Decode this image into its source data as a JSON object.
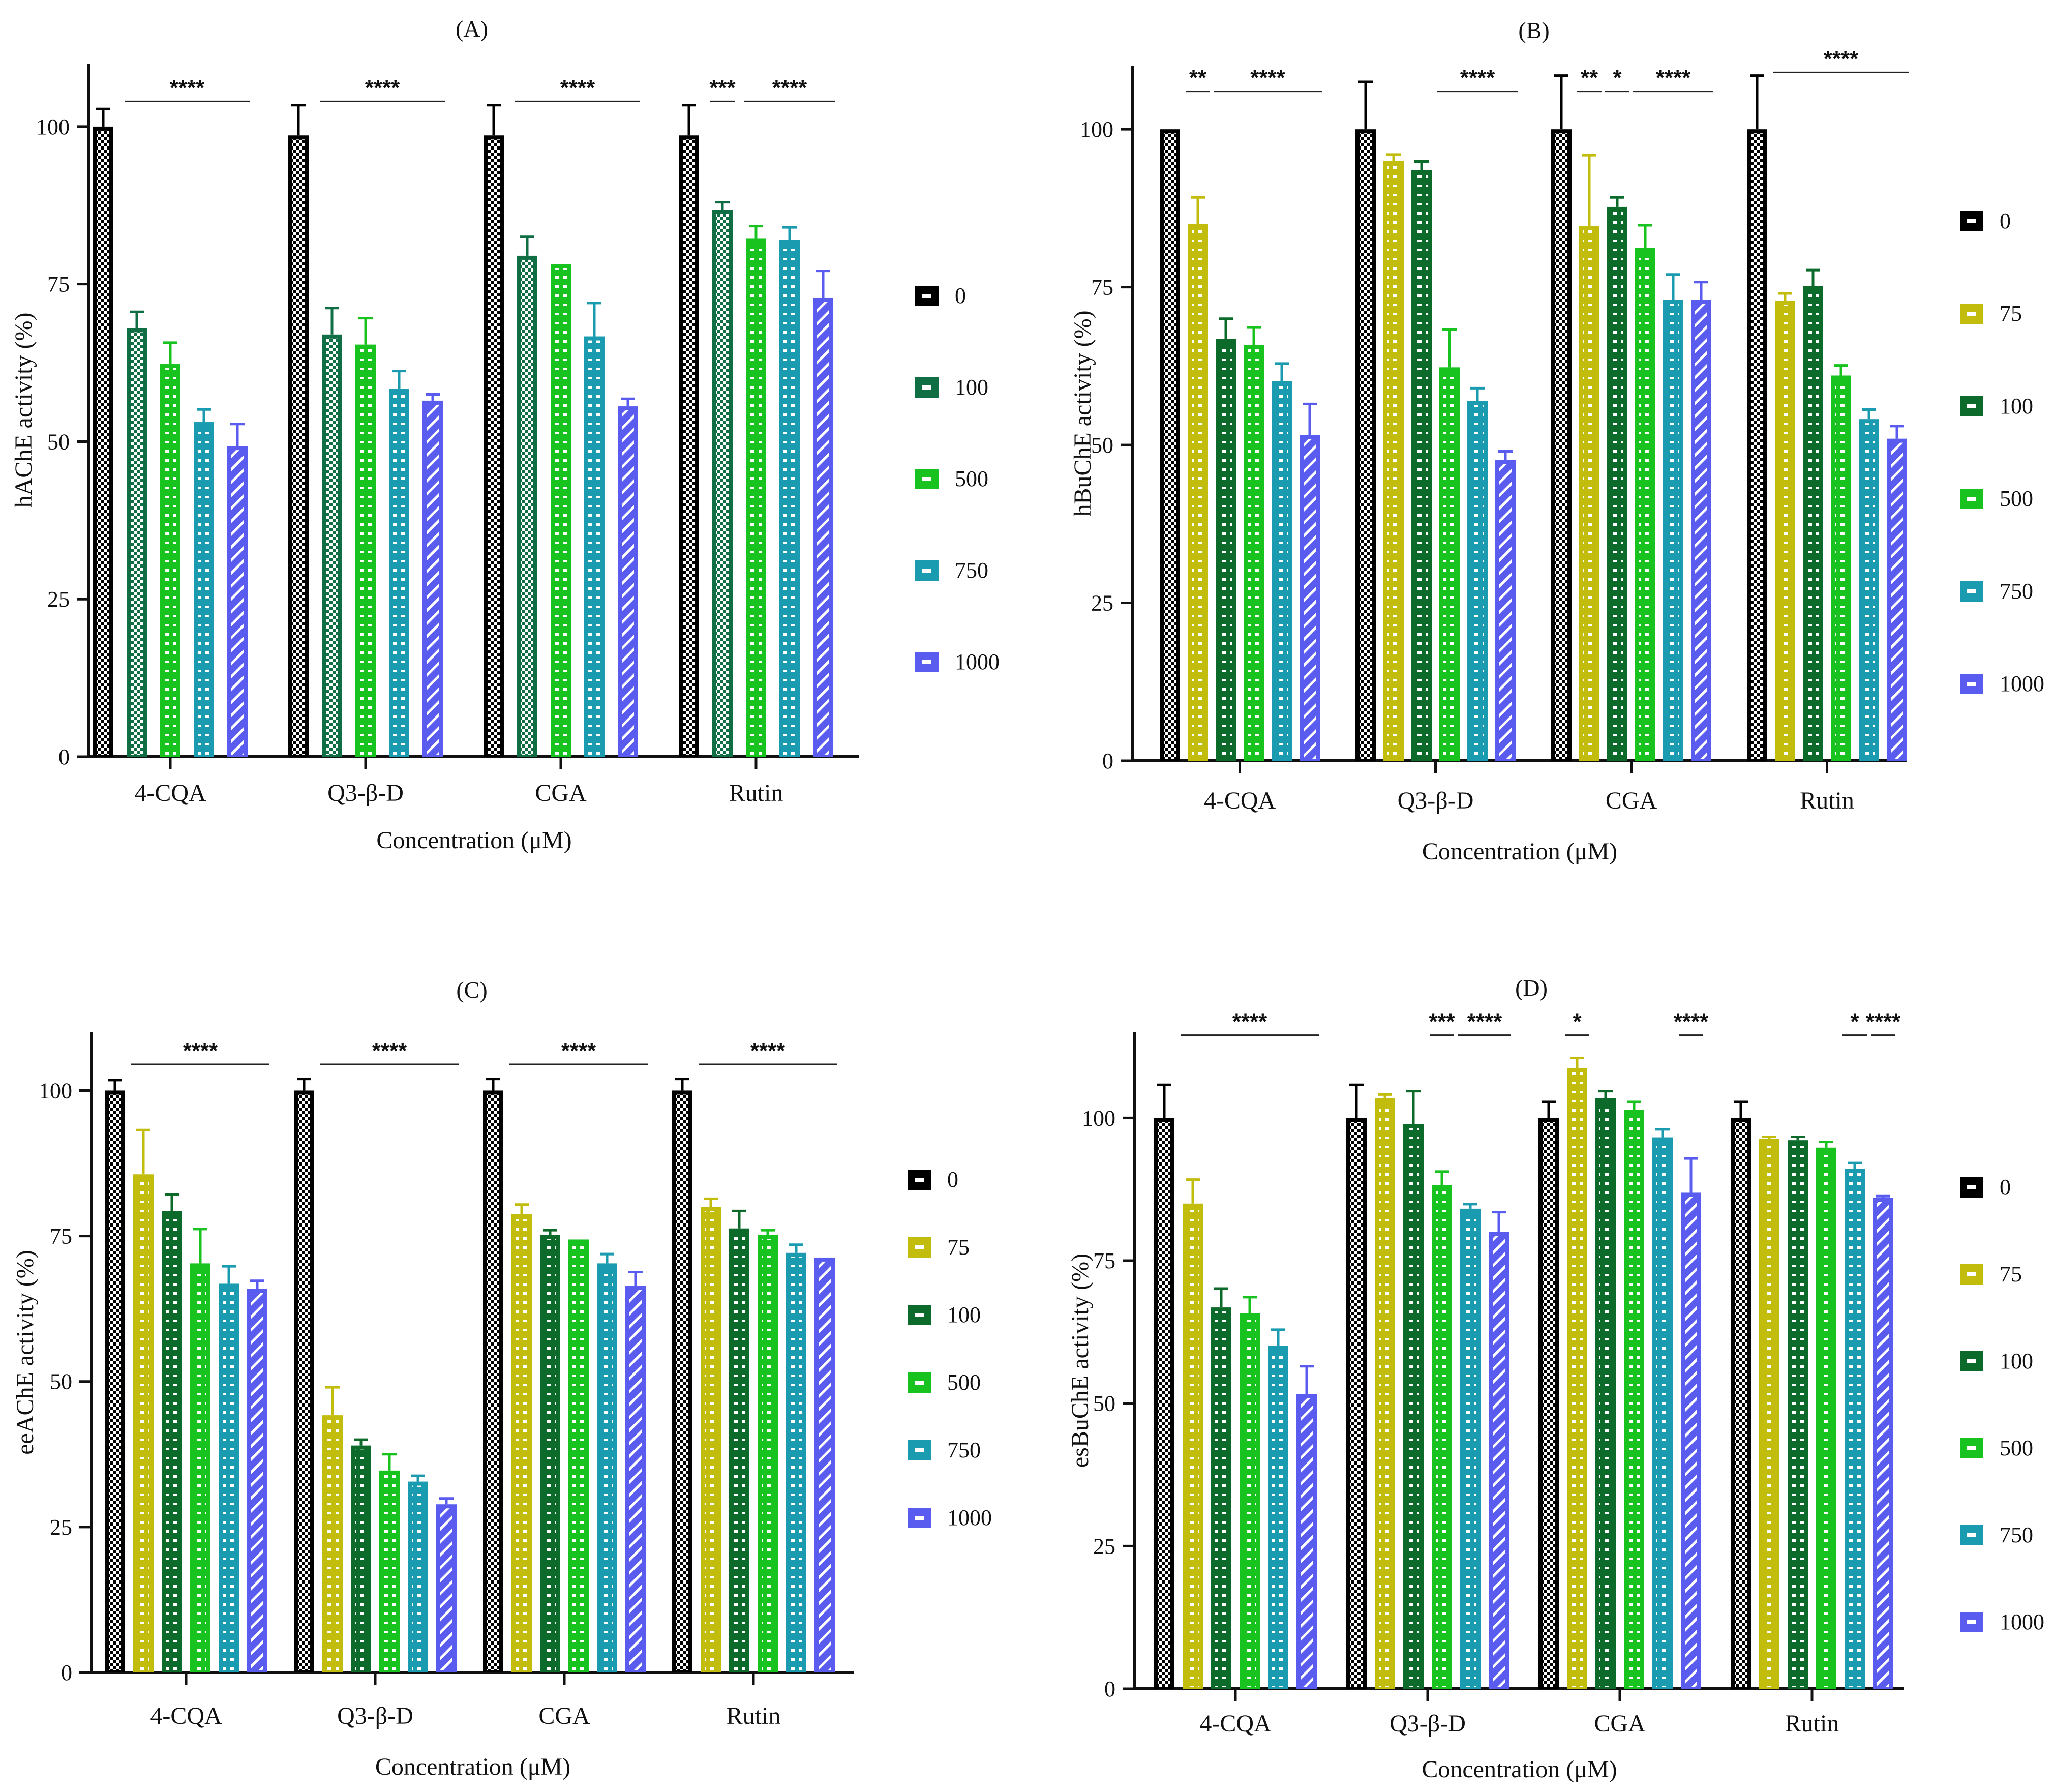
{
  "colors": {
    "0": "#000000",
    "75": "#c2bd0d",
    "100": "#0c6b2a",
    "100_A": "#0f6e44",
    "500": "#18c21f",
    "750": "#1a9bb0",
    "1000": "#5a5cf0"
  },
  "chart_data": [
    {
      "id": "A",
      "type": "bar",
      "title": "(A)",
      "xlabel": "Concentration (μM)",
      "ylabel": "hAChE activity (%)",
      "ylim": [
        0,
        110
      ],
      "yticks": [
        "0",
        "25",
        "50",
        "75",
        "100"
      ],
      "categories": [
        "4-CQA",
        "Q3-β-D",
        "CGA",
        "Rutin"
      ],
      "series": [
        {
          "name": "0",
          "color_key": "0",
          "values": [
            100,
            98.6,
            98.6,
            98.6
          ],
          "errors": [
            2.8,
            4.8,
            4.8,
            4.8
          ]
        },
        {
          "name": "100",
          "color_key": "100_A",
          "values": [
            68,
            67,
            79.5,
            86.8
          ],
          "errors": [
            2.6,
            4.2,
            3,
            1.2
          ]
        },
        {
          "name": "500",
          "color_key": "500",
          "values": [
            62.3,
            65.4,
            78.2,
            82.2
          ],
          "errors": [
            3.4,
            4.2,
            0,
            2
          ]
        },
        {
          "name": "750",
          "color_key": "750",
          "values": [
            53.1,
            58.4,
            66.7,
            82
          ],
          "errors": [
            2,
            2.8,
            5.3,
            2
          ]
        },
        {
          "name": "1000",
          "color_key": "1000",
          "values": [
            49.3,
            56.5,
            55.6,
            72.8
          ],
          "errors": [
            3.5,
            1,
            1.2,
            4.3
          ]
        }
      ],
      "significance": [
        {
          "label": "****",
          "group": 0,
          "from": 1,
          "to": 4,
          "level": 104
        },
        {
          "label": "****",
          "group": 1,
          "from": 1,
          "to": 4,
          "level": 104
        },
        {
          "label": "****",
          "group": 2,
          "from": 1,
          "to": 4,
          "level": 104
        },
        {
          "label": "***",
          "group": 3,
          "from": 1,
          "to": 1,
          "level": 104
        },
        {
          "label": "****",
          "group": 3,
          "from": 2,
          "to": 4,
          "level": 104
        }
      ]
    },
    {
      "id": "B",
      "type": "bar",
      "title": "(B)",
      "xlabel": "Concentration (μM)",
      "ylabel": "hBuChE activity (%)",
      "ylim": [
        0,
        110
      ],
      "yticks": [
        "0",
        "25",
        "50",
        "75",
        "100"
      ],
      "categories": [
        "4-CQA",
        "Q3-β-D",
        "CGA",
        "Rutin"
      ],
      "series": [
        {
          "name": "0",
          "color_key": "0",
          "values": [
            100,
            100,
            100,
            100
          ],
          "errors": [
            0,
            7.5,
            8.5,
            8.5
          ]
        },
        {
          "name": "75",
          "color_key": "75",
          "values": [
            85,
            95,
            84.7,
            72.8
          ],
          "errors": [
            4.2,
            1,
            11.2,
            1.2
          ]
        },
        {
          "name": "100",
          "color_key": "100",
          "values": [
            66.8,
            93.5,
            87.7,
            75.2
          ],
          "errors": [
            3.2,
            1.4,
            1.5,
            2.5
          ]
        },
        {
          "name": "500",
          "color_key": "500",
          "values": [
            65.8,
            62.3,
            81.2,
            61
          ],
          "errors": [
            2.8,
            6,
            3.6,
            1.6
          ]
        },
        {
          "name": "750",
          "color_key": "750",
          "values": [
            60.1,
            57,
            73,
            54.1
          ],
          "errors": [
            2.8,
            2,
            4,
            1.5
          ]
        },
        {
          "name": "1000",
          "color_key": "1000",
          "values": [
            51.6,
            47.6,
            73,
            51
          ],
          "errors": [
            4.9,
            1.4,
            2.8,
            2
          ]
        }
      ],
      "significance": [
        {
          "label": "**",
          "group": 0,
          "from": 1,
          "to": 1,
          "level": 106
        },
        {
          "label": "****",
          "group": 0,
          "from": 2,
          "to": 5,
          "level": 106
        },
        {
          "label": "****",
          "group": 1,
          "from": 3,
          "to": 5,
          "level": 106
        },
        {
          "label": "**",
          "group": 2,
          "from": 1,
          "to": 1,
          "level": 106
        },
        {
          "label": "*",
          "group": 2,
          "from": 2,
          "to": 2,
          "level": 106
        },
        {
          "label": "****",
          "group": 2,
          "from": 3,
          "to": 5,
          "level": 106
        },
        {
          "label": "****",
          "group": 3,
          "from": 1,
          "to": 5,
          "level": 109
        }
      ]
    },
    {
      "id": "C",
      "type": "bar",
      "title": "(C)",
      "xlabel": "Concentration (μM)",
      "ylabel": "eeAChE activity (%)",
      "ylim": [
        0,
        110
      ],
      "yticks": [
        "0",
        "25",
        "50",
        "75",
        "100"
      ],
      "categories": [
        "4-CQA",
        "Q3-β-D",
        "CGA",
        "Rutin"
      ],
      "series": [
        {
          "name": "0",
          "color_key": "0",
          "values": [
            100,
            100,
            100,
            100
          ],
          "errors": [
            1.8,
            2,
            2,
            2
          ]
        },
        {
          "name": "75",
          "color_key": "75",
          "values": [
            85.6,
            44.2,
            78.8,
            80
          ],
          "errors": [
            7.6,
            4.8,
            1.6,
            1.4
          ]
        },
        {
          "name": "100",
          "color_key": "100",
          "values": [
            79.3,
            39,
            75.2,
            76.3
          ],
          "errors": [
            2.8,
            1,
            0.8,
            3
          ]
        },
        {
          "name": "500",
          "color_key": "500",
          "values": [
            70.3,
            34.7,
            74.4,
            75.2
          ],
          "errors": [
            5.9,
            2.8,
            0,
            0.8
          ]
        },
        {
          "name": "750",
          "color_key": "750",
          "values": [
            66.8,
            32.8,
            70.3,
            72.1
          ],
          "errors": [
            3,
            1,
            1.6,
            1.4
          ]
        },
        {
          "name": "1000",
          "color_key": "1000",
          "values": [
            65.9,
            28.9,
            66.4,
            71.3
          ],
          "errors": [
            1.4,
            1,
            2.4,
            0
          ]
        }
      ],
      "significance": [
        {
          "label": "****",
          "group": 0,
          "from": 1,
          "to": 5,
          "level": 104.5
        },
        {
          "label": "****",
          "group": 1,
          "from": 1,
          "to": 5,
          "level": 104.5
        },
        {
          "label": "****",
          "group": 2,
          "from": 1,
          "to": 5,
          "level": 104.5
        },
        {
          "label": "****",
          "group": 3,
          "from": 1,
          "to": 5,
          "level": 104.5
        }
      ]
    },
    {
      "id": "D",
      "type": "bar",
      "title": "(D)",
      "xlabel": "Concentration (μM)",
      "ylabel": "esBuChE activity (%)",
      "ylim": [
        0,
        115
      ],
      "yticks": [
        "0",
        "25",
        "50",
        "75",
        "100"
      ],
      "categories": [
        "4-CQA",
        "Q3-β-D",
        "CGA",
        "Rutin"
      ],
      "series": [
        {
          "name": "0",
          "color_key": "0",
          "values": [
            100,
            100,
            100,
            100
          ],
          "errors": [
            5.8,
            5.8,
            2.8,
            2.8
          ]
        },
        {
          "name": "75",
          "color_key": "75",
          "values": [
            85,
            103.5,
            108.7,
            96.3
          ],
          "errors": [
            4.2,
            0.6,
            1.8,
            0.4
          ]
        },
        {
          "name": "100",
          "color_key": "100",
          "values": [
            66.8,
            98.9,
            103.5,
            96.1
          ],
          "errors": [
            3.3,
            5.8,
            1.2,
            0.6
          ]
        },
        {
          "name": "500",
          "color_key": "500",
          "values": [
            65.8,
            88.2,
            101.4,
            94.8
          ],
          "errors": [
            2.8,
            2.4,
            1.4,
            1
          ]
        },
        {
          "name": "750",
          "color_key": "750",
          "values": [
            60.1,
            84.1,
            96.6,
            91.1
          ],
          "errors": [
            2.8,
            0.8,
            1.4,
            1
          ]
        },
        {
          "name": "1000",
          "color_key": "1000",
          "values": [
            51.6,
            80,
            86.9,
            86
          ],
          "errors": [
            4.9,
            3.5,
            6,
            0.3
          ]
        }
      ],
      "significance": [
        {
          "label": "****",
          "group": 0,
          "from": 1,
          "to": 5,
          "level": 114.5
        },
        {
          "label": "***",
          "group": 1,
          "from": 3,
          "to": 3,
          "level": 114.5
        },
        {
          "label": "****",
          "group": 1,
          "from": 4,
          "to": 5,
          "level": 114.5
        },
        {
          "label": "*",
          "group": 2,
          "from": 1,
          "to": 1,
          "level": 114.5
        },
        {
          "label": "****",
          "group": 2,
          "from": 5,
          "to": 5,
          "level": 114.5
        },
        {
          "label": "*",
          "group": 3,
          "from": 4,
          "to": 4,
          "level": 114.5
        },
        {
          "label": "****",
          "group": 3,
          "from": 5,
          "to": 5,
          "level": 114.5
        }
      ]
    }
  ]
}
